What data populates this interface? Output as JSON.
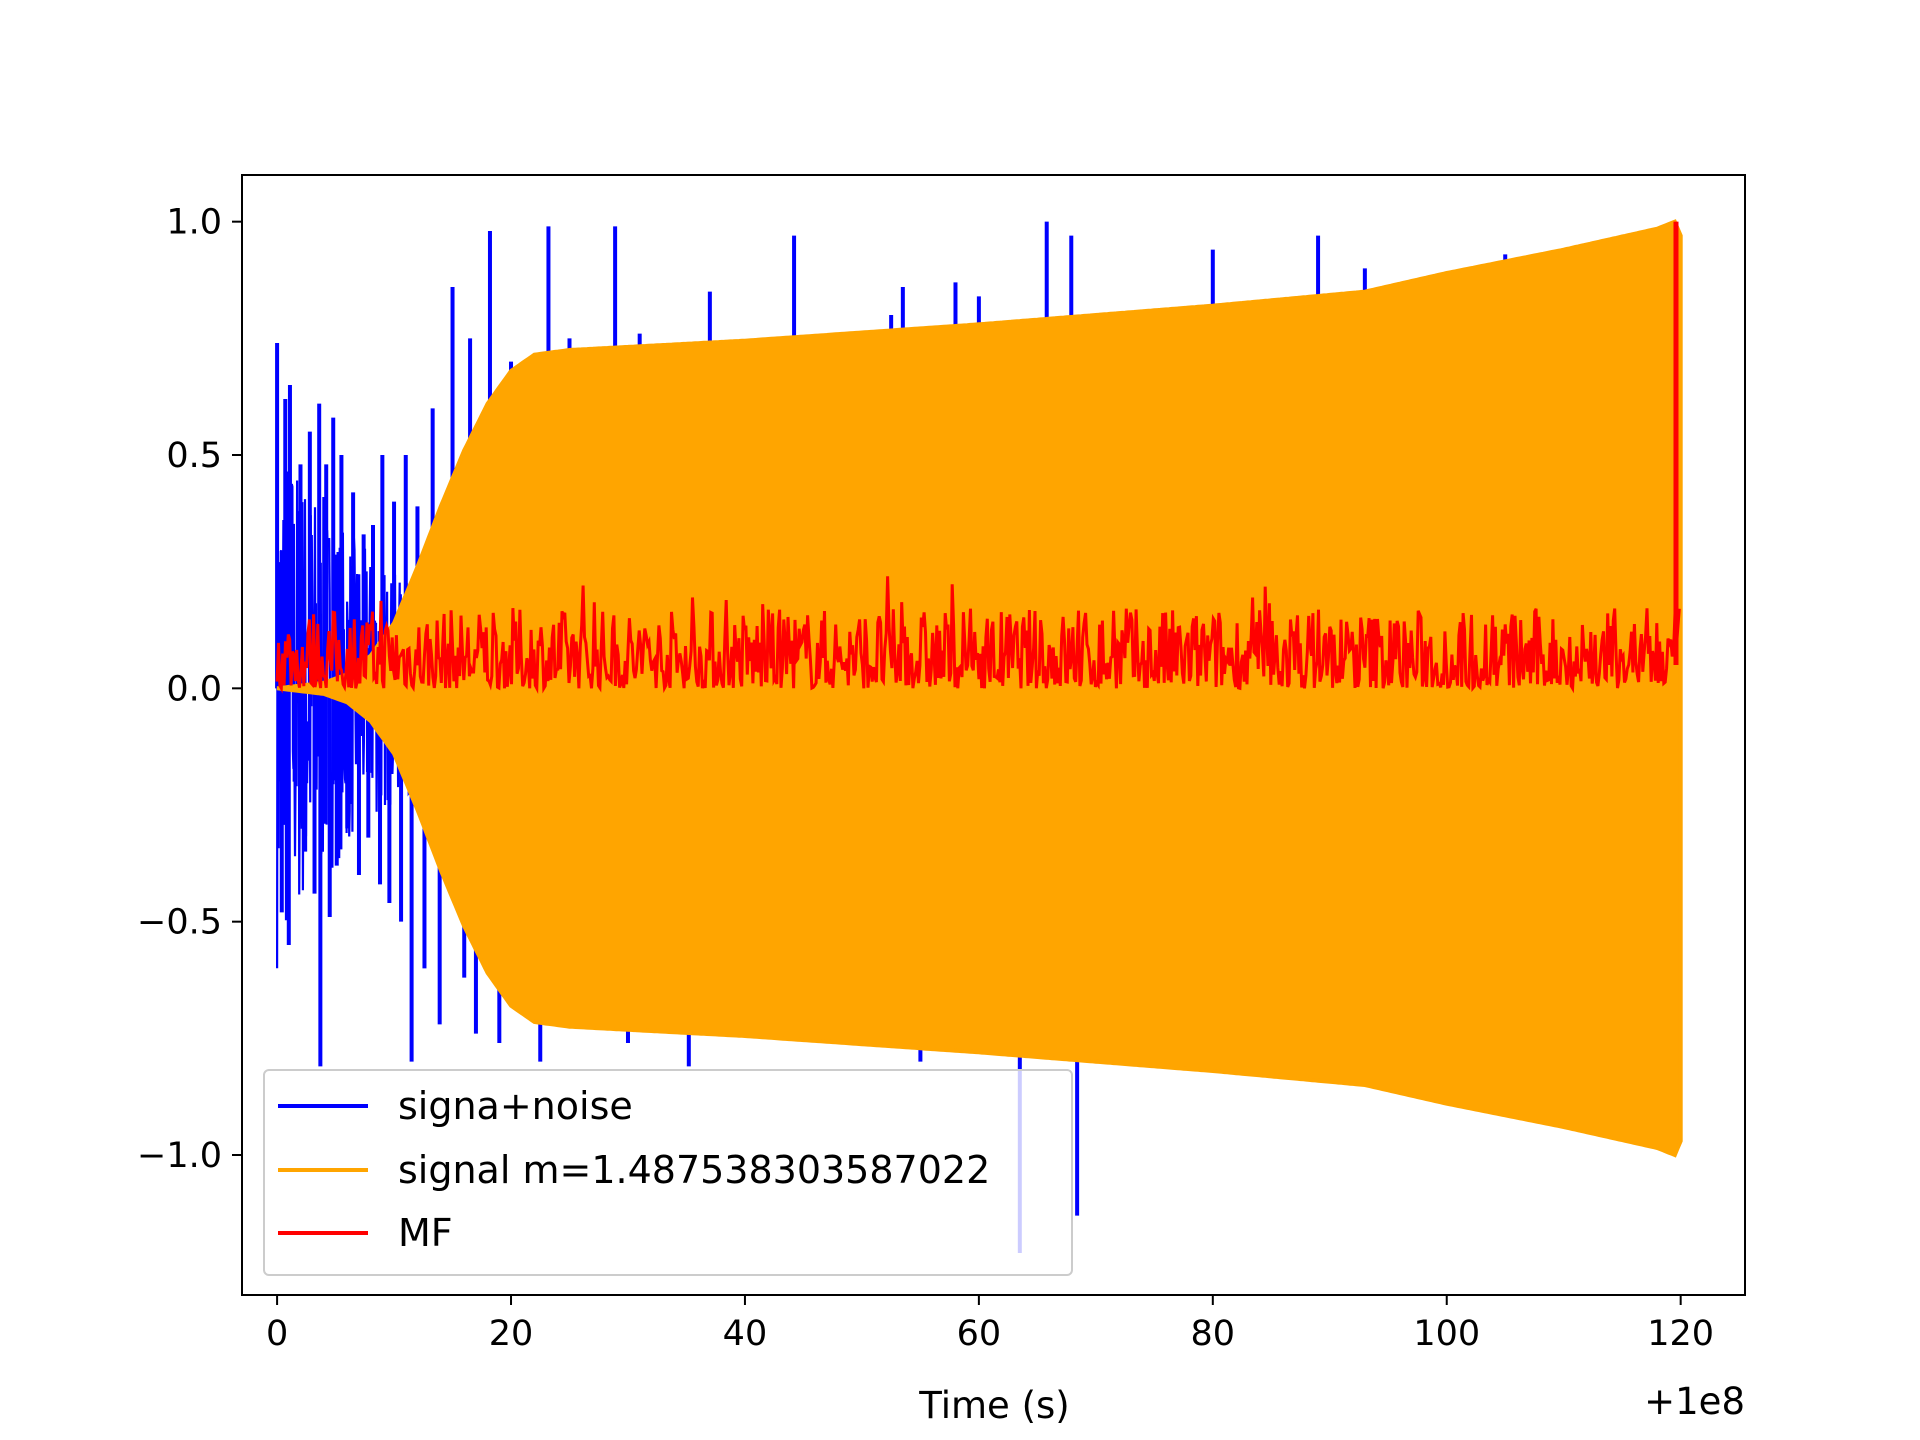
{
  "chart_data": {
    "type": "line",
    "title": "",
    "xlabel": "Time (s)",
    "ylabel": "",
    "x_offset_label": "+1e8",
    "xlim": [
      -3,
      125.5
    ],
    "ylim": [
      -1.3,
      1.1
    ],
    "xticks": [
      0,
      20,
      40,
      60,
      80,
      100,
      120
    ],
    "yticks": [
      -1.0,
      -0.5,
      0.0,
      0.5,
      1.0
    ],
    "xtick_labels": [
      "0",
      "20",
      "40",
      "60",
      "80",
      "100",
      "120"
    ],
    "ytick_labels": [
      "−1.0",
      "−0.5",
      "0.0",
      "0.5",
      "1.0"
    ],
    "grid": false,
    "legend_position": "lower-left",
    "series": [
      {
        "name": "signa+noise",
        "color": "#0000ff",
        "spikes": [
          {
            "x": 0.0,
            "y": 0.74
          },
          {
            "x": 0.4,
            "y": -0.48
          },
          {
            "x": 0.7,
            "y": 0.62
          },
          {
            "x": 1.0,
            "y": -0.55
          },
          {
            "x": 1.1,
            "y": 0.65
          },
          {
            "x": 1.5,
            "y": -0.2
          },
          {
            "x": 2.0,
            "y": 0.48
          },
          {
            "x": 2.4,
            "y": -0.35
          },
          {
            "x": 2.8,
            "y": 0.55
          },
          {
            "x": 3.2,
            "y": -0.44
          },
          {
            "x": 3.6,
            "y": 0.61
          },
          {
            "x": 3.7,
            "y": -0.81
          },
          {
            "x": 4.2,
            "y": 0.48
          },
          {
            "x": 4.5,
            "y": -0.49
          },
          {
            "x": 4.8,
            "y": 0.58
          },
          {
            "x": 5.1,
            "y": -0.38
          },
          {
            "x": 5.5,
            "y": 0.5
          },
          {
            "x": 6.0,
            "y": -0.3
          },
          {
            "x": 6.5,
            "y": 0.42
          },
          {
            "x": 7.0,
            "y": -0.4
          },
          {
            "x": 7.4,
            "y": 0.33
          },
          {
            "x": 7.8,
            "y": -0.32
          },
          {
            "x": 8.2,
            "y": 0.35
          },
          {
            "x": 8.8,
            "y": -0.42
          },
          {
            "x": 9.0,
            "y": 0.5
          },
          {
            "x": 9.6,
            "y": -0.46
          },
          {
            "x": 10.0,
            "y": 0.4
          },
          {
            "x": 10.6,
            "y": -0.5
          },
          {
            "x": 11.0,
            "y": 0.5
          },
          {
            "x": 11.5,
            "y": -0.8
          },
          {
            "x": 12.0,
            "y": 0.39
          },
          {
            "x": 12.6,
            "y": -0.6
          },
          {
            "x": 13.3,
            "y": 0.6
          },
          {
            "x": 13.9,
            "y": -0.72
          },
          {
            "x": 15.0,
            "y": 0.86
          },
          {
            "x": 16.0,
            "y": -0.62
          },
          {
            "x": 16.5,
            "y": 0.75
          },
          {
            "x": 17.0,
            "y": -0.74
          },
          {
            "x": 18.2,
            "y": 0.98
          },
          {
            "x": 19.0,
            "y": -0.76
          },
          {
            "x": 20.0,
            "y": 0.7
          },
          {
            "x": 22.5,
            "y": -0.8
          },
          {
            "x": 23.2,
            "y": 0.99
          },
          {
            "x": 25.0,
            "y": 0.75
          },
          {
            "x": 28.9,
            "y": 0.99
          },
          {
            "x": 30.0,
            "y": -0.76
          },
          {
            "x": 31.0,
            "y": 0.76
          },
          {
            "x": 35.2,
            "y": -0.81
          },
          {
            "x": 37.0,
            "y": 0.85
          },
          {
            "x": 44.2,
            "y": 0.97
          },
          {
            "x": 52.5,
            "y": 0.8
          },
          {
            "x": 53.5,
            "y": 0.86
          },
          {
            "x": 55.0,
            "y": -0.8
          },
          {
            "x": 58.0,
            "y": 0.87
          },
          {
            "x": 60.0,
            "y": 0.84
          },
          {
            "x": 63.5,
            "y": -1.21
          },
          {
            "x": 65.8,
            "y": 1.0
          },
          {
            "x": 67.9,
            "y": 0.97
          },
          {
            "x": 68.4,
            "y": -1.13
          },
          {
            "x": 80.0,
            "y": 0.94
          },
          {
            "x": 89.0,
            "y": 0.97
          },
          {
            "x": 93.0,
            "y": 0.9
          },
          {
            "x": 105.0,
            "y": 0.93
          },
          {
            "x": 117.0,
            "y": 0.9
          }
        ]
      },
      {
        "name": "signal m=1.487538303587022",
        "color": "#ffa500",
        "envelope": [
          {
            "x": 0.0,
            "y": 0.0
          },
          {
            "x": 4.0,
            "y": 0.012
          },
          {
            "x": 6.0,
            "y": 0.03
          },
          {
            "x": 8.0,
            "y": 0.07
          },
          {
            "x": 10.0,
            "y": 0.14
          },
          {
            "x": 12.0,
            "y": 0.26
          },
          {
            "x": 14.0,
            "y": 0.39
          },
          {
            "x": 16.0,
            "y": 0.51
          },
          {
            "x": 18.0,
            "y": 0.61
          },
          {
            "x": 20.0,
            "y": 0.68
          },
          {
            "x": 22.0,
            "y": 0.715
          },
          {
            "x": 25.0,
            "y": 0.725
          },
          {
            "x": 40.0,
            "y": 0.745
          },
          {
            "x": 60.0,
            "y": 0.78
          },
          {
            "x": 80.0,
            "y": 0.82
          },
          {
            "x": 93.0,
            "y": 0.85
          },
          {
            "x": 100.0,
            "y": 0.89
          },
          {
            "x": 110.0,
            "y": 0.94
          },
          {
            "x": 118.0,
            "y": 0.985
          },
          {
            "x": 119.5,
            "y": 1.0
          },
          {
            "x": 120.0,
            "y": 0.97
          }
        ]
      },
      {
        "name": "MF",
        "color": "#ff0000",
        "baseline": 0.08,
        "band": [
          0.0,
          0.23
        ],
        "peak": {
          "x": 119.6,
          "y": 1.0
        }
      }
    ]
  }
}
